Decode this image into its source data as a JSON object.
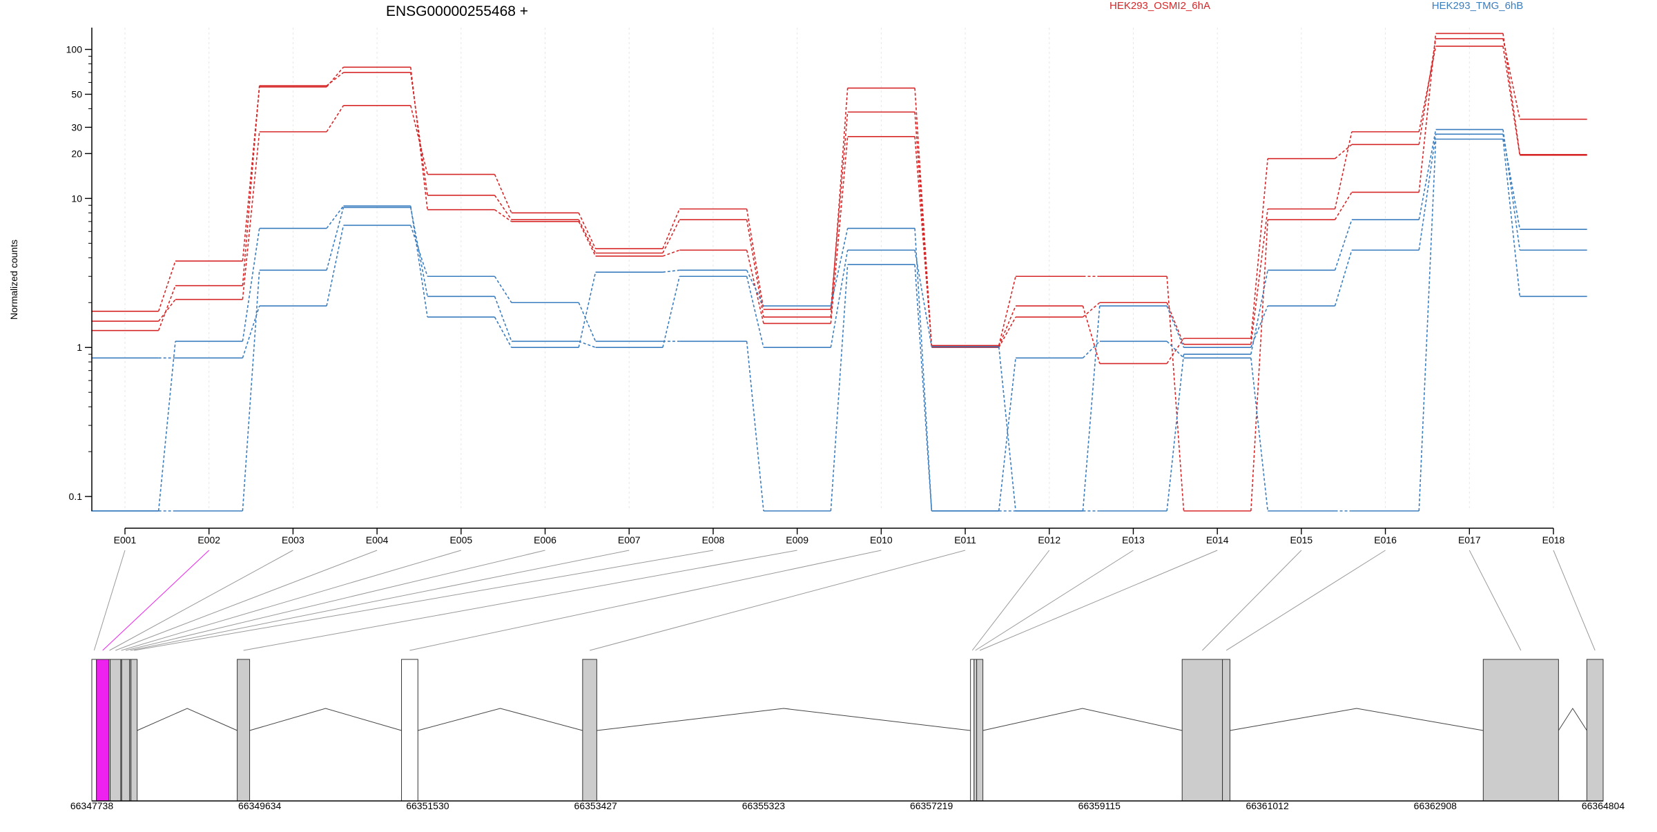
{
  "chart_data": {
    "type": "line",
    "title": "ENSG00000255468 +",
    "ylabel": "Normalized counts",
    "xlabel": "",
    "yscale": "log",
    "ylim": [
      0.08,
      140
    ],
    "yticks": [
      "0.1",
      "1",
      "10",
      "20",
      "30",
      "50",
      "100"
    ],
    "grid": "vertical dotted",
    "legend_placement": "top-right",
    "colors": {
      "HEK293_OSMI2_6hA": "#d62728",
      "HEK293_TMG_6hB": "#3a7dbf",
      "highlight": "#ee22ee",
      "exon_fill": "#cccccc"
    },
    "categories": [
      "E001",
      "E002",
      "E003",
      "E004",
      "E005",
      "E006",
      "E007",
      "E008",
      "E009",
      "E010",
      "E011",
      "E012",
      "E013",
      "E014",
      "E015",
      "E016",
      "E017",
      "E018"
    ],
    "series": [
      {
        "name": "HEK293_OSMI2_6hA",
        "group": "HEK293_OSMI2_6hA",
        "values": [
          1.5,
          2.1,
          28,
          42,
          14.5,
          8.0,
          4.6,
          8.5,
          1.8,
          38,
          1.02,
          1.9,
          0.78,
          1.15,
          18.5,
          23,
          118,
          34
        ]
      },
      {
        "name": "",
        "group": "HEK293_OSMI2_6hA",
        "values": [
          1.3,
          2.6,
          57,
          70,
          10.5,
          7.2,
          4.3,
          7.2,
          1.6,
          55,
          1.0,
          1.6,
          2.0,
          1.05,
          8.5,
          28,
          105,
          19.5
        ]
      },
      {
        "name": "",
        "group": "HEK293_OSMI2_6hA",
        "values": [
          1.75,
          3.8,
          56,
          76,
          8.4,
          7.0,
          4.1,
          4.5,
          1.45,
          26,
          1.03,
          3.0,
          3.0,
          0.08,
          7.2,
          11,
          128,
          19.7
        ]
      },
      {
        "name": "HEK293_TMG_6hB",
        "group": "HEK293_TMG_6hB",
        "values": [
          0.85,
          0.85,
          1.9,
          6.6,
          3.0,
          2.0,
          1.1,
          1.1,
          0.08,
          3.6,
          0.08,
          0.85,
          1.1,
          0.85,
          0.08,
          0.08,
          25,
          2.2
        ]
      },
      {
        "name": "",
        "group": "HEK293_TMG_6hB",
        "values": [
          0.08,
          0.08,
          3.3,
          8.7,
          2.2,
          1.1,
          1.0,
          3.0,
          1.0,
          4.5,
          1.01,
          0.08,
          1.9,
          1.0,
          1.9,
          4.5,
          27,
          6.2
        ]
      },
      {
        "name": "",
        "group": "HEK293_TMG_6hB",
        "values": [
          0.08,
          1.1,
          6.3,
          8.9,
          1.6,
          1.0,
          3.2,
          3.3,
          1.9,
          6.3,
          0.08,
          0.08,
          0.08,
          0.9,
          3.3,
          7.2,
          29,
          4.5
        ]
      }
    ],
    "gene_model": {
      "genomic_ticks": [
        "66347738",
        "66349634",
        "66351530",
        "66353427",
        "66355323",
        "66357219",
        "66359115",
        "66361012",
        "66362908",
        "66364804"
      ],
      "genomic_range": [
        66347738,
        66364804
      ],
      "exons": [
        {
          "id": "E001",
          "start": 66347738,
          "end": 66347790,
          "fill": "white"
        },
        {
          "id": "E002",
          "start": 66347790,
          "end": 66347930,
          "fill": "highlight"
        },
        {
          "id": "E003",
          "start": 66347930,
          "end": 66347945,
          "fill": "exon_fill"
        },
        {
          "id": "E004",
          "start": 66347945,
          "end": 66348065,
          "fill": "exon_fill"
        },
        {
          "id": "E005",
          "start": 66348065,
          "end": 66348075,
          "fill": "exon_fill"
        },
        {
          "id": "E006",
          "start": 66348075,
          "end": 66348165,
          "fill": "exon_fill"
        },
        {
          "id": "E007",
          "start": 66348165,
          "end": 66348180,
          "fill": "exon_fill"
        },
        {
          "id": "E008",
          "start": 66348180,
          "end": 66348250,
          "fill": "exon_fill"
        },
        {
          "id": "E009",
          "start": 66349380,
          "end": 66349520,
          "fill": "exon_fill"
        },
        {
          "id": "E010",
          "start": 66351235,
          "end": 66351420,
          "fill": "white"
        },
        {
          "id": "E011",
          "start": 66353280,
          "end": 66353440,
          "fill": "exon_fill"
        },
        {
          "id": "E012",
          "start": 66357660,
          "end": 66357700,
          "fill": "white"
        },
        {
          "id": "E013",
          "start": 66357700,
          "end": 66357730,
          "fill": "exon_fill"
        },
        {
          "id": "E014",
          "start": 66357730,
          "end": 66357800,
          "fill": "exon_fill"
        },
        {
          "id": "E015",
          "start": 66360050,
          "end": 66360505,
          "fill": "exon_fill"
        },
        {
          "id": "E016",
          "start": 66360505,
          "end": 66360590,
          "fill": "exon_fill"
        },
        {
          "id": "E017",
          "start": 66363450,
          "end": 66364300,
          "fill": "exon_fill"
        },
        {
          "id": "E018",
          "start": 66364620,
          "end": 66364804,
          "fill": "exon_fill"
        }
      ]
    }
  }
}
